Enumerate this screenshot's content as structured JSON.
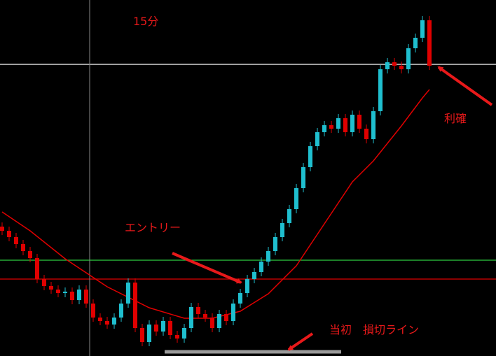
{
  "chart_data": {
    "type": "candlestick",
    "annotations": [
      "15分",
      "エントリー",
      "利確",
      "当初　損切ライン"
    ],
    "xlim": [
      -0.3,
      70.5
    ],
    "ylim": [
      0,
      509
    ],
    "up_color": "#1fbfcf",
    "down_color": "#e00000",
    "open": [
      185,
      179,
      170,
      160,
      150,
      140,
      110,
      100,
      95,
      90,
      92,
      80,
      95,
      75,
      55,
      50,
      45,
      55,
      75,
      105,
      40,
      20,
      45,
      35,
      50,
      30,
      25,
      40,
      70,
      60,
      55,
      40,
      60,
      50,
      75,
      90,
      110,
      120,
      135,
      150,
      170,
      190,
      210,
      240,
      270,
      300,
      320,
      330,
      325,
      340,
      320,
      345,
      325,
      310,
      350,
      410,
      420,
      415,
      410,
      440,
      455,
      480
    ],
    "high": [
      191,
      185,
      176,
      166,
      156,
      146,
      116,
      106,
      101,
      98,
      98,
      101,
      101,
      81,
      61,
      56,
      61,
      81,
      111,
      111,
      46,
      51,
      51,
      56,
      56,
      36,
      46,
      76,
      76,
      66,
      61,
      66,
      66,
      81,
      96,
      116,
      126,
      141,
      156,
      176,
      196,
      216,
      246,
      276,
      306,
      326,
      336,
      336,
      346,
      346,
      351,
      351,
      331,
      356,
      416,
      426,
      426,
      421,
      446,
      461,
      486,
      486
    ],
    "low": [
      173,
      164,
      154,
      144,
      134,
      104,
      94,
      89,
      84,
      84,
      74,
      74,
      69,
      49,
      44,
      39,
      39,
      49,
      69,
      34,
      14,
      14,
      29,
      29,
      24,
      19,
      19,
      34,
      54,
      49,
      34,
      34,
      44,
      44,
      69,
      84,
      104,
      114,
      129,
      144,
      164,
      184,
      204,
      234,
      264,
      294,
      314,
      319,
      319,
      314,
      314,
      319,
      304,
      304,
      344,
      404,
      409,
      404,
      404,
      434,
      449,
      409
    ],
    "close": [
      179,
      170,
      160,
      150,
      140,
      110,
      100,
      95,
      90,
      92,
      80,
      95,
      75,
      55,
      50,
      45,
      55,
      75,
      105,
      40,
      20,
      45,
      35,
      50,
      30,
      25,
      40,
      70,
      60,
      55,
      40,
      60,
      50,
      75,
      90,
      110,
      120,
      135,
      150,
      170,
      190,
      210,
      240,
      270,
      300,
      320,
      330,
      325,
      340,
      320,
      345,
      325,
      310,
      350,
      410,
      420,
      415,
      410,
      440,
      455,
      480,
      415
    ],
    "ma": {
      "color": "#e00000",
      "x": [
        0,
        4,
        9,
        15,
        21,
        26,
        30,
        34,
        38,
        42,
        46,
        50,
        53,
        57,
        60,
        61
      ],
      "values": [
        206,
        179,
        139,
        99,
        69,
        54,
        54,
        64,
        89,
        129,
        189,
        249,
        279,
        329,
        369,
        381
      ]
    },
    "hlines": [
      {
        "value": 417,
        "color": "#ffffff"
      },
      {
        "value": 137,
        "color": "#2ecc40"
      },
      {
        "value": 110,
        "color": "#e00000"
      }
    ],
    "vline": {
      "value": 12.5,
      "color": "#888888"
    },
    "stop_line": {
      "value": 6,
      "x": [
        23.2,
        48.4
      ],
      "color": "#9a9a9a"
    }
  }
}
